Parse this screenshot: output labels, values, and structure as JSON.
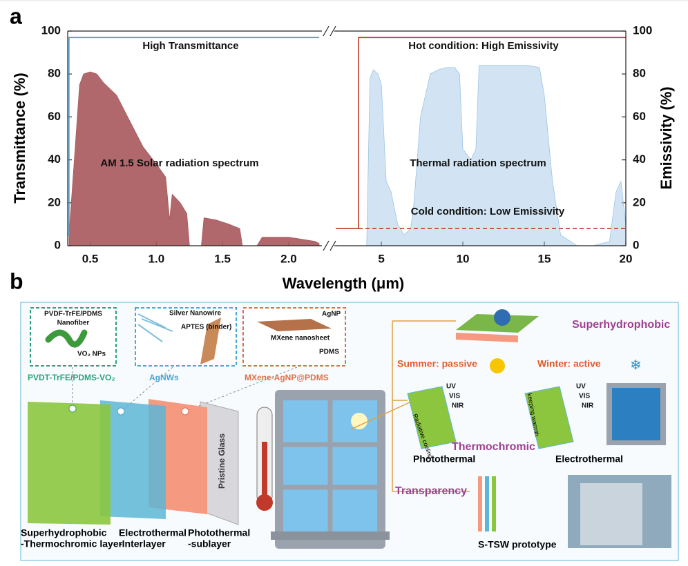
{
  "panel_labels": [
    "a",
    "b"
  ],
  "chart_data": [
    {
      "type": "line",
      "xlabel": "Wavelength (μm)",
      "ylabel": "Transmittance (%)",
      "y_axis_side": "left",
      "xlim": [
        0.33,
        2.23
      ],
      "ylim": [
        0,
        100
      ],
      "xticks": [
        0.5,
        {
          "value": 1,
          "label": "1.0"
        },
        1.5,
        {
          "value": 2,
          "label": "2.0"
        }
      ],
      "yticks": [
        0,
        20,
        40,
        60,
        80,
        100
      ],
      "annotations": [
        "High Transmittance",
        "AM 1.5 Solar radiation spectrum"
      ],
      "series": [
        {
          "kind": "area",
          "color": "#a8585c",
          "x": [
            0.34,
            0.38,
            0.42,
            0.45,
            0.5,
            0.55,
            0.6,
            0.7,
            0.8,
            0.9,
            1.0,
            1.07,
            1.1,
            1.12,
            1.18,
            1.23,
            1.25,
            1.34,
            1.36,
            1.45,
            1.55,
            1.63,
            1.65,
            1.76,
            1.8,
            1.9,
            2.0,
            2.1,
            2.2,
            2.23
          ],
          "values": [
            5,
            40,
            75,
            80,
            81,
            80,
            76,
            70,
            58,
            46,
            38,
            32,
            12,
            24,
            20,
            15,
            0,
            0,
            13,
            12,
            10,
            8,
            0,
            0,
            4,
            4,
            4,
            3,
            2,
            1
          ]
        },
        {
          "kind": "line",
          "color": "#4a9fd0",
          "x": [
            0.33,
            0.34,
            0.34,
            2.23
          ],
          "values": [
            5,
            5,
            97,
            97
          ]
        }
      ]
    },
    {
      "type": "line",
      "ylabel": "Emissivity (%)",
      "y_axis_side": "right",
      "xlim": [
        2.2,
        20
      ],
      "ylim": [
        0,
        100
      ],
      "xticks": [
        5,
        10,
        15,
        20
      ],
      "yticks": [
        0,
        20,
        40,
        60,
        80,
        100
      ],
      "annotations": [
        "Hot condition: High Emissivity",
        "Thermal radiation spectrum",
        "Cold condition: Low Emissivity"
      ],
      "series": [
        {
          "kind": "area",
          "color": "#9cc4e4",
          "x": [
            4.1,
            4.3,
            4.5,
            4.8,
            5.0,
            5.3,
            5.6,
            6.0,
            6.4,
            6.8,
            7.0,
            7.4,
            8.0,
            8.5,
            9.0,
            9.5,
            9.8,
            10.0,
            10.5,
            10.8,
            11.0,
            12,
            13,
            14,
            14.7,
            15,
            15.5,
            16,
            17,
            18,
            19,
            19.4,
            19.7,
            20
          ],
          "values": [
            0,
            78,
            82,
            80,
            75,
            30,
            25,
            10,
            5,
            8,
            20,
            60,
            80,
            82,
            83,
            83,
            80,
            45,
            40,
            45,
            84,
            84,
            84,
            84,
            83,
            70,
            30,
            5,
            0,
            0,
            2,
            25,
            30,
            10
          ]
        },
        {
          "kind": "line",
          "color": "#c0392b",
          "x": [
            2.2,
            3.6,
            3.6,
            20
          ],
          "values": [
            8,
            8,
            97,
            97
          ]
        },
        {
          "kind": "line",
          "color": "#c0392b",
          "dash": true,
          "x": [
            3.6,
            20
          ],
          "values": [
            8,
            8
          ]
        }
      ]
    }
  ],
  "panel_b": {
    "labels": [
      "PVDF-TrFE/PDMS",
      "Nanofiber",
      "VO₂ NPs",
      "Silver Nanowire",
      "APTES (binder)",
      "AgNP",
      "MXene nanosheet",
      "PDMS",
      "PVDT-TrFE/PDMS-VO₂",
      "AgNWs",
      "MXene-AgNP@PDMS",
      "Pristine Glass",
      "Superhydrophobic",
      "-Thermochromic layer",
      "Electrothermal",
      "-Interlayer",
      "Photothermal",
      "-sublayer",
      "Superhydrophobic",
      "Summer: passive",
      "Winter: active",
      "UV",
      "VIS",
      "NIR",
      "Radiative cooling",
      "UV",
      "VIS",
      "NIR",
      "keeping warmth",
      "Thermochromic",
      "Photothermal",
      "Electrothermal",
      "Transparency",
      "S-TSW prototype"
    ]
  }
}
